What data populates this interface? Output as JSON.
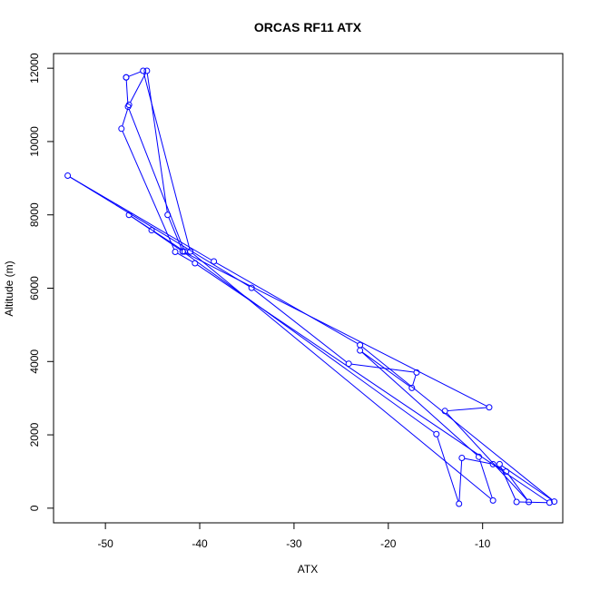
{
  "chart_data": {
    "type": "line",
    "title": "ORCAS RF11 ATX",
    "xlabel": "ATX",
    "ylabel": "Altitude (m)",
    "xlim": [
      -55.5,
      -1.5
    ],
    "ylim": [
      -400,
      12400
    ],
    "xticks": [
      -50,
      -40,
      -30,
      -20,
      -10
    ],
    "yticks": [
      0,
      2000,
      4000,
      6000,
      8000,
      10000,
      12000
    ],
    "grid": false,
    "legend": "none",
    "color": "#0000ff",
    "series": [
      {
        "x": [
          -47.8,
          -47.6,
          -41.6,
          -47.5,
          -45.1,
          -41.8,
          -9.3,
          -14.0,
          -5.1,
          -7.5,
          -8.9,
          -12.2,
          -12.5,
          -14.9,
          -41.8,
          -43.4,
          -45.6,
          -47.5,
          -48.3,
          -42.6,
          -40.5,
          -2.9,
          -6.4,
          -8.2,
          -2.4,
          -23.0,
          -38.5,
          -54.0,
          -34.5,
          -24.2,
          -17.0,
          -17.5,
          -23.0,
          -10.4,
          -8.9,
          -41.0,
          -46.0,
          -47.8
        ],
        "y": [
          11750,
          10950,
          7000,
          8000,
          7580,
          7000,
          2750,
          2650,
          170,
          1000,
          1200,
          1370,
          120,
          2020,
          7000,
          8000,
          11930,
          11000,
          10350,
          6990,
          6680,
          150,
          170,
          1200,
          180,
          4450,
          6730,
          9070,
          6010,
          3940,
          3700,
          3280,
          4300,
          1400,
          210,
          7000,
          11930,
          11750
        ]
      }
    ]
  }
}
